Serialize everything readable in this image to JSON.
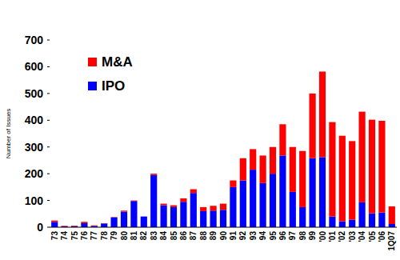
{
  "chart_data": {
    "type": "bar",
    "stacked": true,
    "y_label": "Number of Issues",
    "categories": [
      "73",
      "74",
      "75",
      "76",
      "77",
      "78",
      "79",
      "80",
      "81",
      "82",
      "83",
      "84",
      "85",
      "86",
      "87",
      "88",
      "89",
      "90",
      "91",
      "92",
      "93",
      "94",
      "95",
      "96",
      "97",
      "98",
      "99",
      "'00",
      "'01",
      "'02",
      "'03",
      "'04",
      "'05",
      "'06",
      "1Q07"
    ],
    "series": [
      {
        "name": "IPO",
        "color": "#0000ff",
        "values": [
          20,
          3,
          4,
          15,
          5,
          14,
          37,
          58,
          98,
          40,
          195,
          82,
          75,
          95,
          128,
          60,
          62,
          65,
          150,
          175,
          215,
          165,
          200,
          268,
          132,
          75,
          258,
          262,
          40,
          22,
          28,
          93,
          52,
          55,
          12
        ]
      },
      {
        "name": "M&A",
        "color": "#ff0000",
        "values": [
          5,
          2,
          2,
          5,
          2,
          1,
          1,
          4,
          2,
          0,
          5,
          6,
          7,
          13,
          14,
          15,
          18,
          23,
          25,
          83,
          77,
          103,
          100,
          117,
          168,
          210,
          242,
          320,
          353,
          320,
          294,
          339,
          350,
          343,
          66
        ]
      }
    ],
    "ylim": [
      0,
      700
    ],
    "yticks": [
      0,
      100,
      200,
      300,
      400,
      500,
      600,
      700
    ],
    "legend": "top-left",
    "grid": false
  }
}
